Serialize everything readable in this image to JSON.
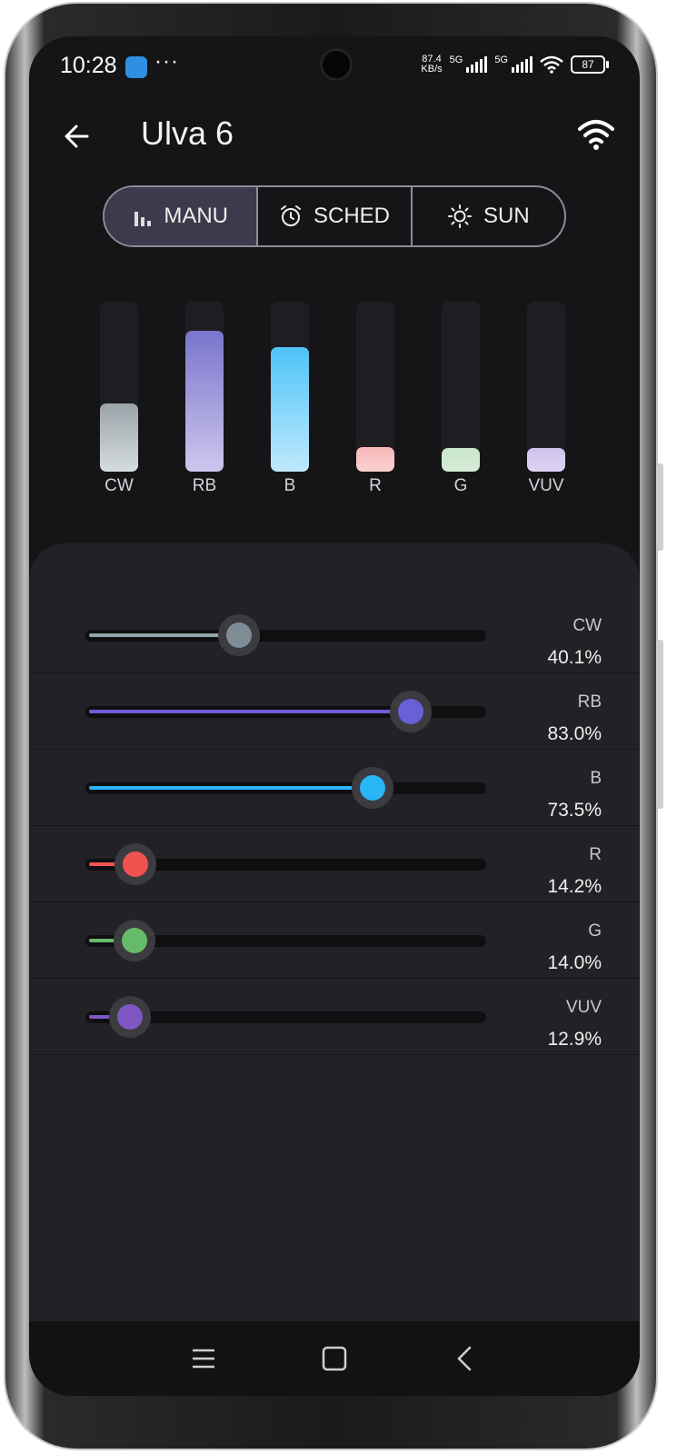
{
  "status_bar": {
    "time": "10:28",
    "speed": "87.4\nKB/s",
    "signal1": "5G",
    "signal2": "5G",
    "battery": "87"
  },
  "header": {
    "title": "Ulva 6"
  },
  "modes": [
    {
      "label": "MANU",
      "icon": "bar-chart-icon",
      "selected": true
    },
    {
      "label": "SCHED",
      "icon": "alarm-clock-icon",
      "selected": false
    },
    {
      "label": "SUN",
      "icon": "sun-icon",
      "selected": false
    }
  ],
  "channels": [
    {
      "label": "CW",
      "value_text": "40.1%",
      "value": 40.1,
      "color": "#8fa4aa",
      "thumb": "#7e8d94",
      "bar_top": "#9aa3a8",
      "bar_bottom": "#d6dde0"
    },
    {
      "label": "RB",
      "value_text": "83.0%",
      "value": 83.0,
      "color": "#6a5fd6",
      "thumb": "#6a5fd6",
      "bar_top": "#7a74cc",
      "bar_bottom": "#cdc7ee"
    },
    {
      "label": "B",
      "value_text": "73.5%",
      "value": 73.5,
      "color": "#29b6f6",
      "thumb": "#29b6f6",
      "bar_top": "#4fc3f7",
      "bar_bottom": "#bfe9fd"
    },
    {
      "label": "R",
      "value_text": "14.2%",
      "value": 14.2,
      "color": "#ef5350",
      "thumb": "#ef5350",
      "bar_top": "#f7b8b8",
      "bar_bottom": "#fbd0d0"
    },
    {
      "label": "G",
      "value_text": "14.0%",
      "value": 14.0,
      "color": "#66bb6a",
      "thumb": "#66bb6a",
      "bar_top": "#c8e6c9",
      "bar_bottom": "#d6ecd7"
    },
    {
      "label": "VUV",
      "value_text": "12.9%",
      "value": 12.9,
      "color": "#7e57c2",
      "thumb": "#7e57c2",
      "bar_top": "#cfc3ee",
      "bar_bottom": "#ddd3f3"
    }
  ],
  "nav": {
    "icons": [
      "menu-icon",
      "home-square-icon",
      "back-chevron-icon"
    ]
  }
}
